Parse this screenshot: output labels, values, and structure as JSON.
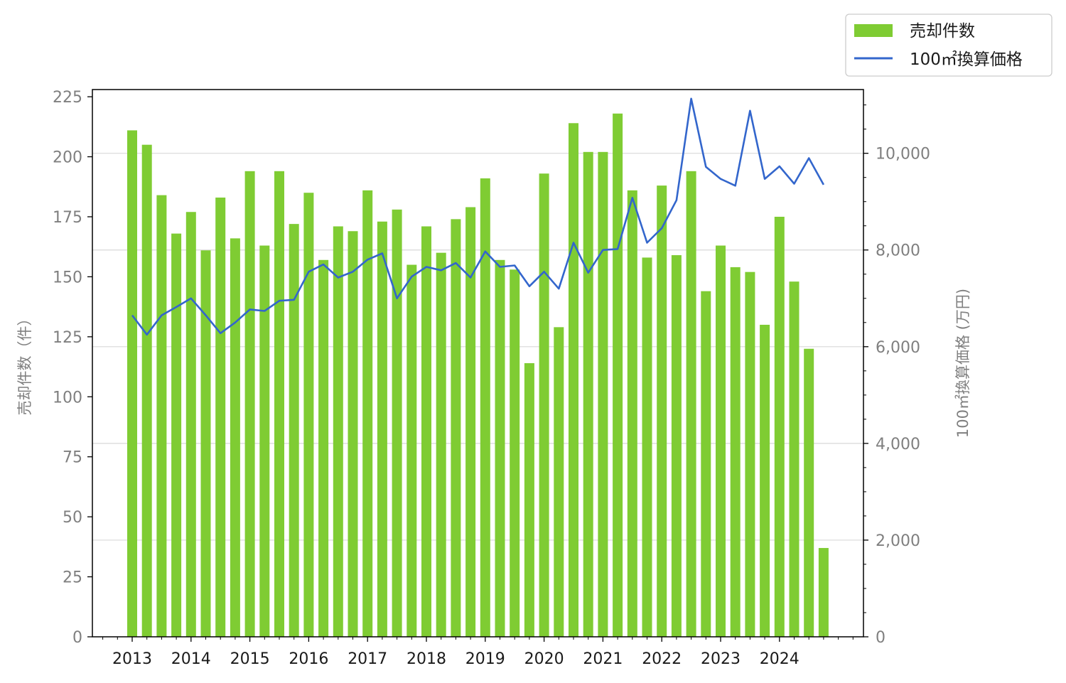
{
  "chart_data": {
    "type": "bar+line",
    "categories": [
      "2013Q1",
      "2013Q2",
      "2013Q3",
      "2013Q4",
      "2014Q1",
      "2014Q2",
      "2014Q3",
      "2014Q4",
      "2015Q1",
      "2015Q2",
      "2015Q3",
      "2015Q4",
      "2016Q1",
      "2016Q2",
      "2016Q3",
      "2016Q4",
      "2017Q1",
      "2017Q2",
      "2017Q3",
      "2017Q4",
      "2018Q1",
      "2018Q2",
      "2018Q3",
      "2018Q4",
      "2019Q1",
      "2019Q2",
      "2019Q3",
      "2019Q4",
      "2020Q1",
      "2020Q2",
      "2020Q3",
      "2020Q4",
      "2021Q1",
      "2021Q2",
      "2021Q3",
      "2021Q4",
      "2022Q1",
      "2022Q2",
      "2022Q3",
      "2022Q4",
      "2023Q1",
      "2023Q2",
      "2023Q3",
      "2023Q4",
      "2024Q1",
      "2024Q2",
      "2024Q3",
      "2024Q4"
    ],
    "year_labels": [
      "2013",
      "2014",
      "2015",
      "2016",
      "2017",
      "2018",
      "2019",
      "2020",
      "2021",
      "2022",
      "2023",
      "2024"
    ],
    "series": [
      {
        "name": "売却件数",
        "kind": "bar",
        "axis": "left",
        "color": "#7fcc33",
        "values": [
          211,
          205,
          184,
          168,
          177,
          161,
          183,
          166,
          194,
          163,
          194,
          172,
          185,
          157,
          171,
          169,
          186,
          173,
          178,
          155,
          171,
          160,
          174,
          179,
          191,
          157,
          153,
          114,
          193,
          129,
          214,
          202,
          202,
          218,
          186,
          158,
          188,
          159,
          194,
          144,
          163,
          154,
          152,
          130,
          175,
          148,
          120,
          37
        ]
      },
      {
        "name": "100㎡換算価格",
        "kind": "line",
        "axis": "right",
        "color": "#3366cc",
        "values": [
          6650,
          6250,
          6650,
          6820,
          7000,
          6650,
          6280,
          6500,
          6770,
          6740,
          6950,
          6970,
          7550,
          7700,
          7430,
          7550,
          7800,
          7930,
          7000,
          7450,
          7650,
          7580,
          7730,
          7430,
          7970,
          7650,
          7680,
          7250,
          7550,
          7200,
          8150,
          7530,
          8000,
          8020,
          9080,
          8150,
          8450,
          9030,
          11130,
          9720,
          9470,
          9330,
          10880,
          9470,
          9730,
          9370,
          9900,
          9350
        ]
      }
    ],
    "y_left": {
      "label": "売却件数（件）",
      "lim": [
        0,
        228
      ],
      "ticks": [
        "0",
        "25",
        "50",
        "75",
        "100",
        "125",
        "150",
        "175",
        "200",
        "225"
      ]
    },
    "y_right": {
      "label": "100㎡換算価格 (万円)",
      "lim": [
        0,
        11318
      ],
      "ticks": [
        "0",
        "2,000",
        "4,000",
        "6,000",
        "8,000",
        "10,000"
      ]
    },
    "grid": "horizontal, right axis major ticks",
    "legend": {
      "position": "top-right, outside plot",
      "items": [
        "売却件数",
        "100㎡換算価格"
      ]
    }
  }
}
